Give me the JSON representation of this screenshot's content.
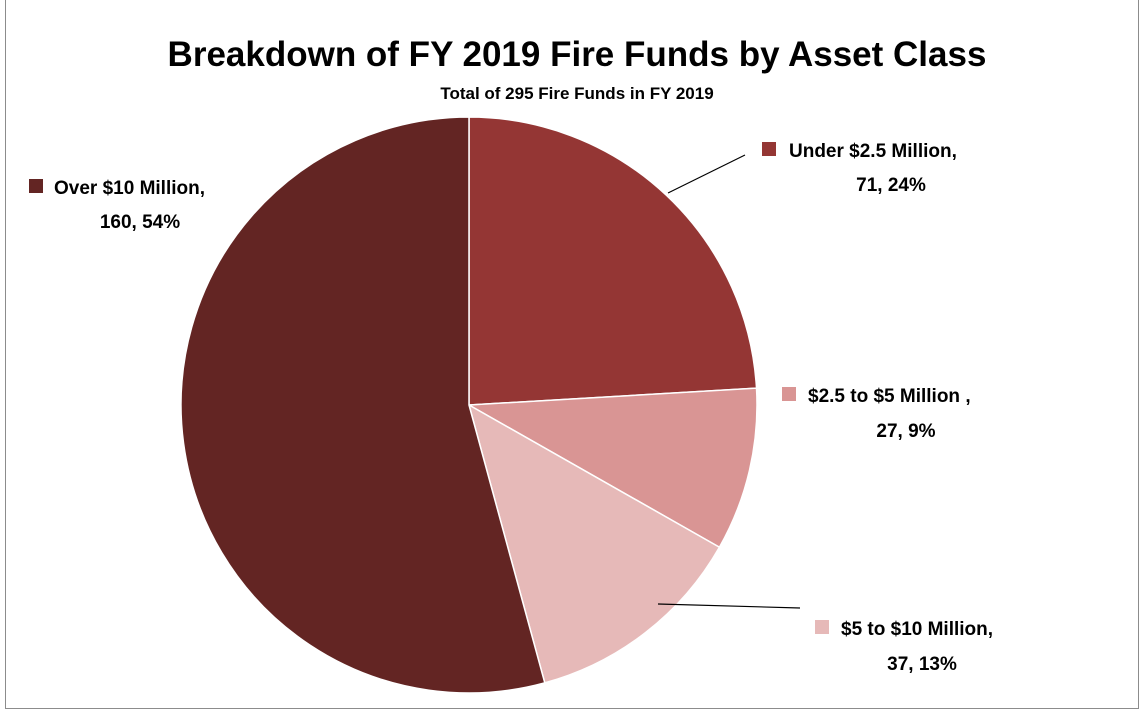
{
  "chart_data": {
    "type": "pie",
    "title": "Breakdown of FY 2019 Fire Funds by Asset Class",
    "subtitle": "Total of 295 Fire Funds in FY 2019",
    "slices": [
      {
        "name": "Under $2.5 Million,",
        "value": 71,
        "percent": "24%",
        "value_label": "71, 24%",
        "color": "#943634"
      },
      {
        "name": "$2.5 to $5 Million ,",
        "value": 27,
        "percent": "9%",
        "value_label": "27, 9%",
        "color": "#d99594"
      },
      {
        "name": "$5 to $10 Million,",
        "value": 37,
        "percent": "13%",
        "value_label": "37, 13%",
        "color": "#e6b9b8"
      },
      {
        "name": "Over $10 Million,",
        "value": 160,
        "percent": "54%",
        "value_label": "160, 54%",
        "color": "#632523"
      }
    ]
  }
}
